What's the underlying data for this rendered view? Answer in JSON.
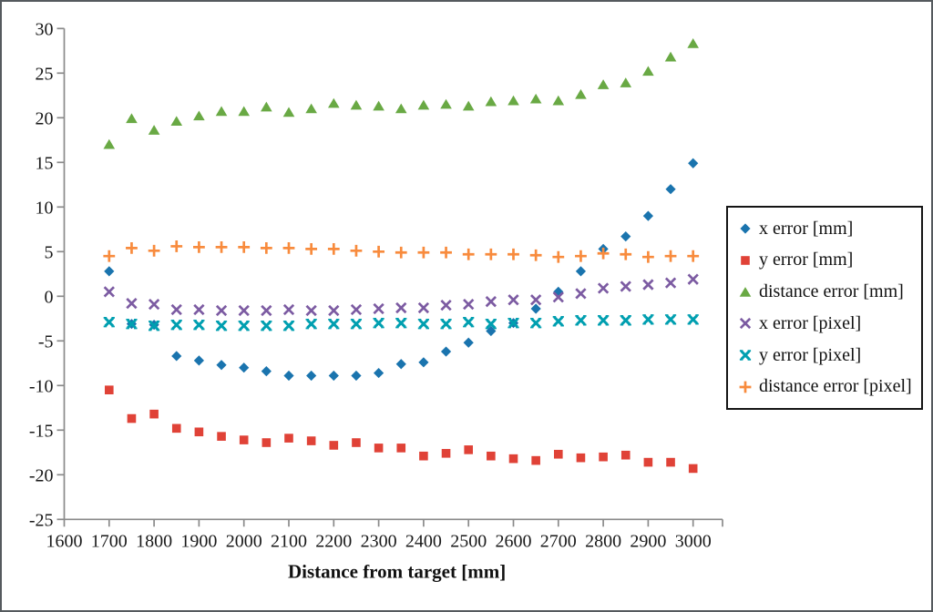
{
  "chart_data": {
    "type": "scatter",
    "title": "",
    "xlabel": "Distance from target [mm]",
    "ylabel": "",
    "grid": false,
    "legend_position": "right",
    "x_axis": {
      "min": 1600,
      "max": 3000,
      "tick_step": 100
    },
    "y_axis": {
      "min": -25,
      "max": 30,
      "tick_step": 5
    },
    "x": [
      1700,
      1750,
      1800,
      1850,
      1900,
      1950,
      2000,
      2050,
      2100,
      2150,
      2200,
      2250,
      2300,
      2350,
      2400,
      2450,
      2500,
      2550,
      2600,
      2650,
      2700,
      2750,
      2800,
      2850,
      2900,
      2950,
      3000
    ],
    "series": [
      {
        "name": "x error [mm]",
        "marker": "diamond",
        "color": "#1A74AE",
        "values": [
          2.8,
          -3.1,
          -3.2,
          -6.7,
          -7.2,
          -7.7,
          -8.0,
          -8.4,
          -8.9,
          -8.9,
          -8.9,
          -8.9,
          -8.6,
          -7.6,
          -7.4,
          -6.2,
          -5.2,
          -3.9,
          -3.0,
          -1.4,
          0.5,
          2.8,
          5.3,
          6.7,
          9.0,
          12.0,
          14.9
        ]
      },
      {
        "name": "y error [mm]",
        "marker": "square",
        "color": "#E04237",
        "values": [
          -10.5,
          -13.7,
          -13.2,
          -14.8,
          -15.2,
          -15.7,
          -16.1,
          -16.4,
          -15.9,
          -16.2,
          -16.7,
          -16.4,
          -17.0,
          -17.0,
          -17.9,
          -17.6,
          -17.2,
          -17.9,
          -18.2,
          -18.4,
          -17.7,
          -18.1,
          -18.0,
          -17.8,
          -18.6,
          -18.6,
          -19.3
        ]
      },
      {
        "name": "distance error [mm]",
        "marker": "triangle",
        "color": "#69A944",
        "values": [
          17.0,
          19.9,
          18.6,
          19.6,
          20.2,
          20.7,
          20.7,
          21.2,
          20.6,
          21.0,
          21.6,
          21.4,
          21.3,
          21.0,
          21.4,
          21.5,
          21.3,
          21.8,
          21.9,
          22.1,
          21.9,
          22.6,
          23.7,
          23.9,
          25.2,
          26.8,
          28.3
        ]
      },
      {
        "name": "x error [pixel]",
        "marker": "x",
        "color": "#7C5BA2",
        "values": [
          0.5,
          -0.8,
          -0.9,
          -1.5,
          -1.5,
          -1.6,
          -1.6,
          -1.6,
          -1.5,
          -1.6,
          -1.6,
          -1.5,
          -1.4,
          -1.3,
          -1.3,
          -1.0,
          -0.9,
          -0.6,
          -0.4,
          -0.4,
          -0.1,
          0.3,
          0.9,
          1.1,
          1.3,
          1.5,
          1.9
        ]
      },
      {
        "name": "y error [pixel]",
        "marker": "x-serif",
        "color": "#009FB0",
        "values": [
          -2.9,
          -3.1,
          -3.3,
          -3.2,
          -3.2,
          -3.3,
          -3.3,
          -3.3,
          -3.3,
          -3.1,
          -3.1,
          -3.1,
          -3.0,
          -3.0,
          -3.1,
          -3.1,
          -2.9,
          -3.1,
          -3.0,
          -3.0,
          -2.8,
          -2.7,
          -2.7,
          -2.7,
          -2.6,
          -2.6,
          -2.6
        ]
      },
      {
        "name": "distance error [pixel]",
        "marker": "plus",
        "color": "#F88B3D",
        "values": [
          4.5,
          5.4,
          5.1,
          5.6,
          5.5,
          5.5,
          5.5,
          5.4,
          5.4,
          5.3,
          5.3,
          5.1,
          5.0,
          4.9,
          4.9,
          4.9,
          4.7,
          4.7,
          4.7,
          4.6,
          4.4,
          4.5,
          4.8,
          4.7,
          4.4,
          4.5,
          4.5
        ]
      }
    ]
  }
}
